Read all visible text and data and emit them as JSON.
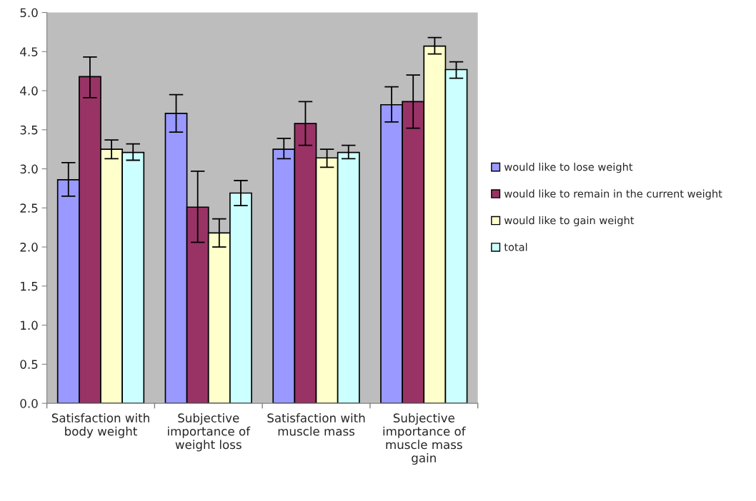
{
  "chart_data": {
    "type": "bar",
    "categories": [
      "Satisfaction with\nbody weight",
      "Subjective\nimportance of\nweight loss",
      "Satisfaction with\nmuscle mass",
      "Subjective\nimportance of\nmuscle mass\ngain"
    ],
    "series": [
      {
        "name": "would like to lose weight",
        "color": "#9999ff",
        "values": [
          2.86,
          3.71,
          3.25,
          3.82
        ],
        "errors": [
          [
            2.65,
            3.08
          ],
          [
            3.47,
            3.95
          ],
          [
            3.13,
            3.39
          ],
          [
            3.6,
            4.05
          ]
        ]
      },
      {
        "name": "would like to remain in the current weight",
        "color": "#993366",
        "values": [
          4.18,
          2.51,
          3.58,
          3.86
        ],
        "errors": [
          [
            3.91,
            4.43
          ],
          [
            2.06,
            2.97
          ],
          [
            3.3,
            3.86
          ],
          [
            3.52,
            4.2
          ]
        ]
      },
      {
        "name": "would like to gain weight",
        "color": "#ffffcc",
        "values": [
          3.25,
          2.18,
          3.14,
          4.57
        ],
        "errors": [
          [
            3.13,
            3.37
          ],
          [
            2.0,
            2.36
          ],
          [
            3.02,
            3.25
          ],
          [
            4.47,
            4.68
          ]
        ]
      },
      {
        "name": "total",
        "color": "#ccffff",
        "values": [
          3.21,
          2.69,
          3.21,
          4.27
        ],
        "errors": [
          [
            3.11,
            3.32
          ],
          [
            2.53,
            2.85
          ],
          [
            3.13,
            3.3
          ],
          [
            4.16,
            4.37
          ]
        ]
      }
    ],
    "ylim": [
      0,
      5
    ],
    "yticks": [
      {
        "value": 0,
        "label": "0.0"
      },
      {
        "value": 0.5,
        "label": "0.5"
      },
      {
        "value": 1,
        "label": "1.0"
      },
      {
        "value": 1.5,
        "label": "1.5"
      },
      {
        "value": 2,
        "label": "2.0"
      },
      {
        "value": 2.5,
        "label": "2.5"
      },
      {
        "value": 3,
        "label": "3.0"
      },
      {
        "value": 3.5,
        "label": "3.5"
      },
      {
        "value": 4,
        "label": "4.0"
      },
      {
        "value": 4.5,
        "label": "4.5"
      },
      {
        "value": 5,
        "label": "5.0"
      }
    ],
    "grid": false,
    "legend": "right"
  }
}
